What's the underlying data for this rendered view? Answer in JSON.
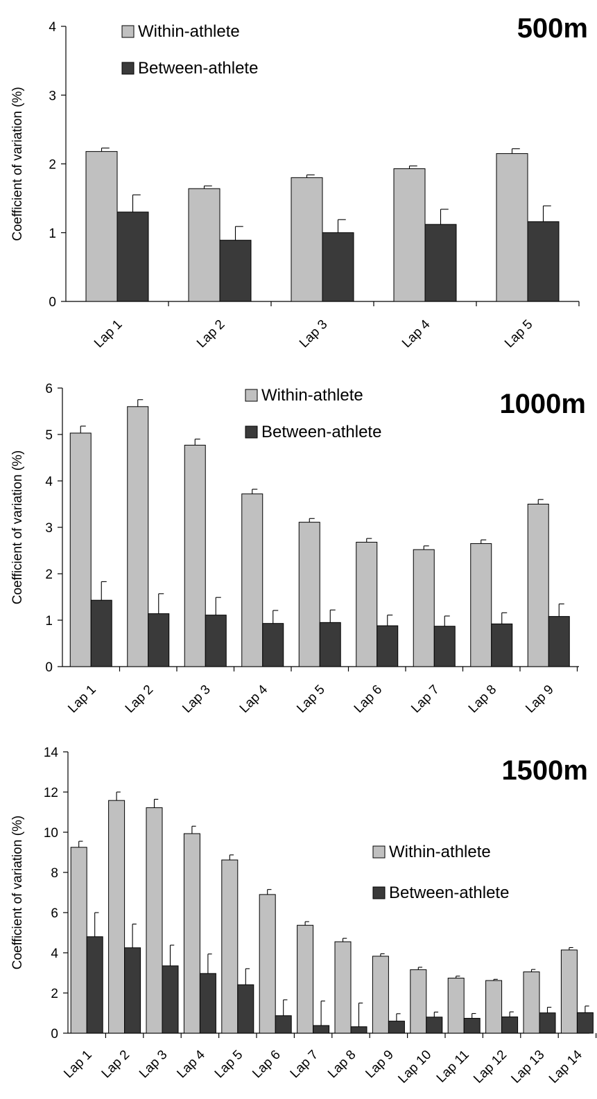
{
  "chart_data": [
    {
      "type": "bar",
      "title": "500m",
      "ylabel": "Coefficient of variation (%)",
      "ylim": [
        0,
        4
      ],
      "yticks": [
        0,
        1,
        2,
        3,
        4
      ],
      "legend_position": "top-left",
      "categories": [
        "Lap 1",
        "Lap 2",
        "Lap 3",
        "Lap 4",
        "Lap 5"
      ],
      "series": [
        {
          "name": "Within-athlete",
          "color": "#c0c0c0",
          "values": [
            2.18,
            1.64,
            1.8,
            1.93,
            2.15
          ],
          "errors": [
            0.05,
            0.04,
            0.04,
            0.04,
            0.07
          ]
        },
        {
          "name": "Between-athlete",
          "color": "#3a3a3a",
          "values": [
            1.3,
            0.89,
            1.0,
            1.12,
            1.16
          ],
          "errors": [
            0.25,
            0.2,
            0.19,
            0.22,
            0.23
          ]
        }
      ]
    },
    {
      "type": "bar",
      "title": "1000m",
      "ylabel": "Coefficient of variation (%)",
      "ylim": [
        0,
        6
      ],
      "yticks": [
        0,
        1,
        2,
        3,
        4,
        5,
        6
      ],
      "legend_position": "top-center",
      "categories": [
        "Lap 1",
        "Lap 2",
        "Lap 3",
        "Lap 4",
        "Lap 5",
        "Lap 6",
        "Lap 7",
        "Lap 8",
        "Lap 9"
      ],
      "series": [
        {
          "name": "Within-athlete",
          "color": "#c0c0c0",
          "values": [
            5.03,
            5.6,
            4.77,
            3.72,
            3.11,
            2.68,
            2.52,
            2.65,
            3.5
          ],
          "errors": [
            0.15,
            0.15,
            0.13,
            0.1,
            0.08,
            0.08,
            0.08,
            0.08,
            0.1
          ]
        },
        {
          "name": "Between-athlete",
          "color": "#3a3a3a",
          "values": [
            1.43,
            1.14,
            1.11,
            0.93,
            0.95,
            0.88,
            0.87,
            0.92,
            1.08
          ],
          "errors": [
            0.4,
            0.43,
            0.38,
            0.28,
            0.27,
            0.23,
            0.22,
            0.24,
            0.27
          ]
        }
      ]
    },
    {
      "type": "bar",
      "title": "1500m",
      "ylabel": "Coefficient of variation (%)",
      "ylim": [
        0,
        14
      ],
      "yticks": [
        0,
        2,
        4,
        6,
        8,
        10,
        12,
        14
      ],
      "legend_position": "center-right",
      "categories": [
        "Lap 1",
        "Lap 2",
        "Lap 3",
        "Lap 4",
        "Lap 5",
        "Lap 6",
        "Lap 7",
        "Lap 8",
        "Lap 9",
        "Lap 10",
        "Lap 11",
        "Lap 12",
        "Lap 13",
        "Lap 14"
      ],
      "series": [
        {
          "name": "Within-athlete",
          "color": "#c0c0c0",
          "values": [
            9.25,
            11.58,
            11.22,
            9.93,
            8.62,
            6.9,
            5.37,
            4.55,
            3.83,
            3.16,
            2.74,
            2.62,
            3.05,
            4.14
          ],
          "errors": [
            0.3,
            0.42,
            0.42,
            0.37,
            0.25,
            0.25,
            0.18,
            0.17,
            0.12,
            0.12,
            0.1,
            0.06,
            0.12,
            0.12
          ]
        },
        {
          "name": "Between-athlete",
          "color": "#3a3a3a",
          "values": [
            4.8,
            4.25,
            3.35,
            2.97,
            2.41,
            0.87,
            0.38,
            0.32,
            0.6,
            0.8,
            0.74,
            0.81,
            1.01,
            1.02
          ],
          "errors": [
            1.2,
            1.18,
            1.03,
            0.97,
            0.8,
            0.79,
            1.22,
            1.18,
            0.37,
            0.25,
            0.24,
            0.25,
            0.28,
            0.33
          ]
        }
      ]
    }
  ]
}
